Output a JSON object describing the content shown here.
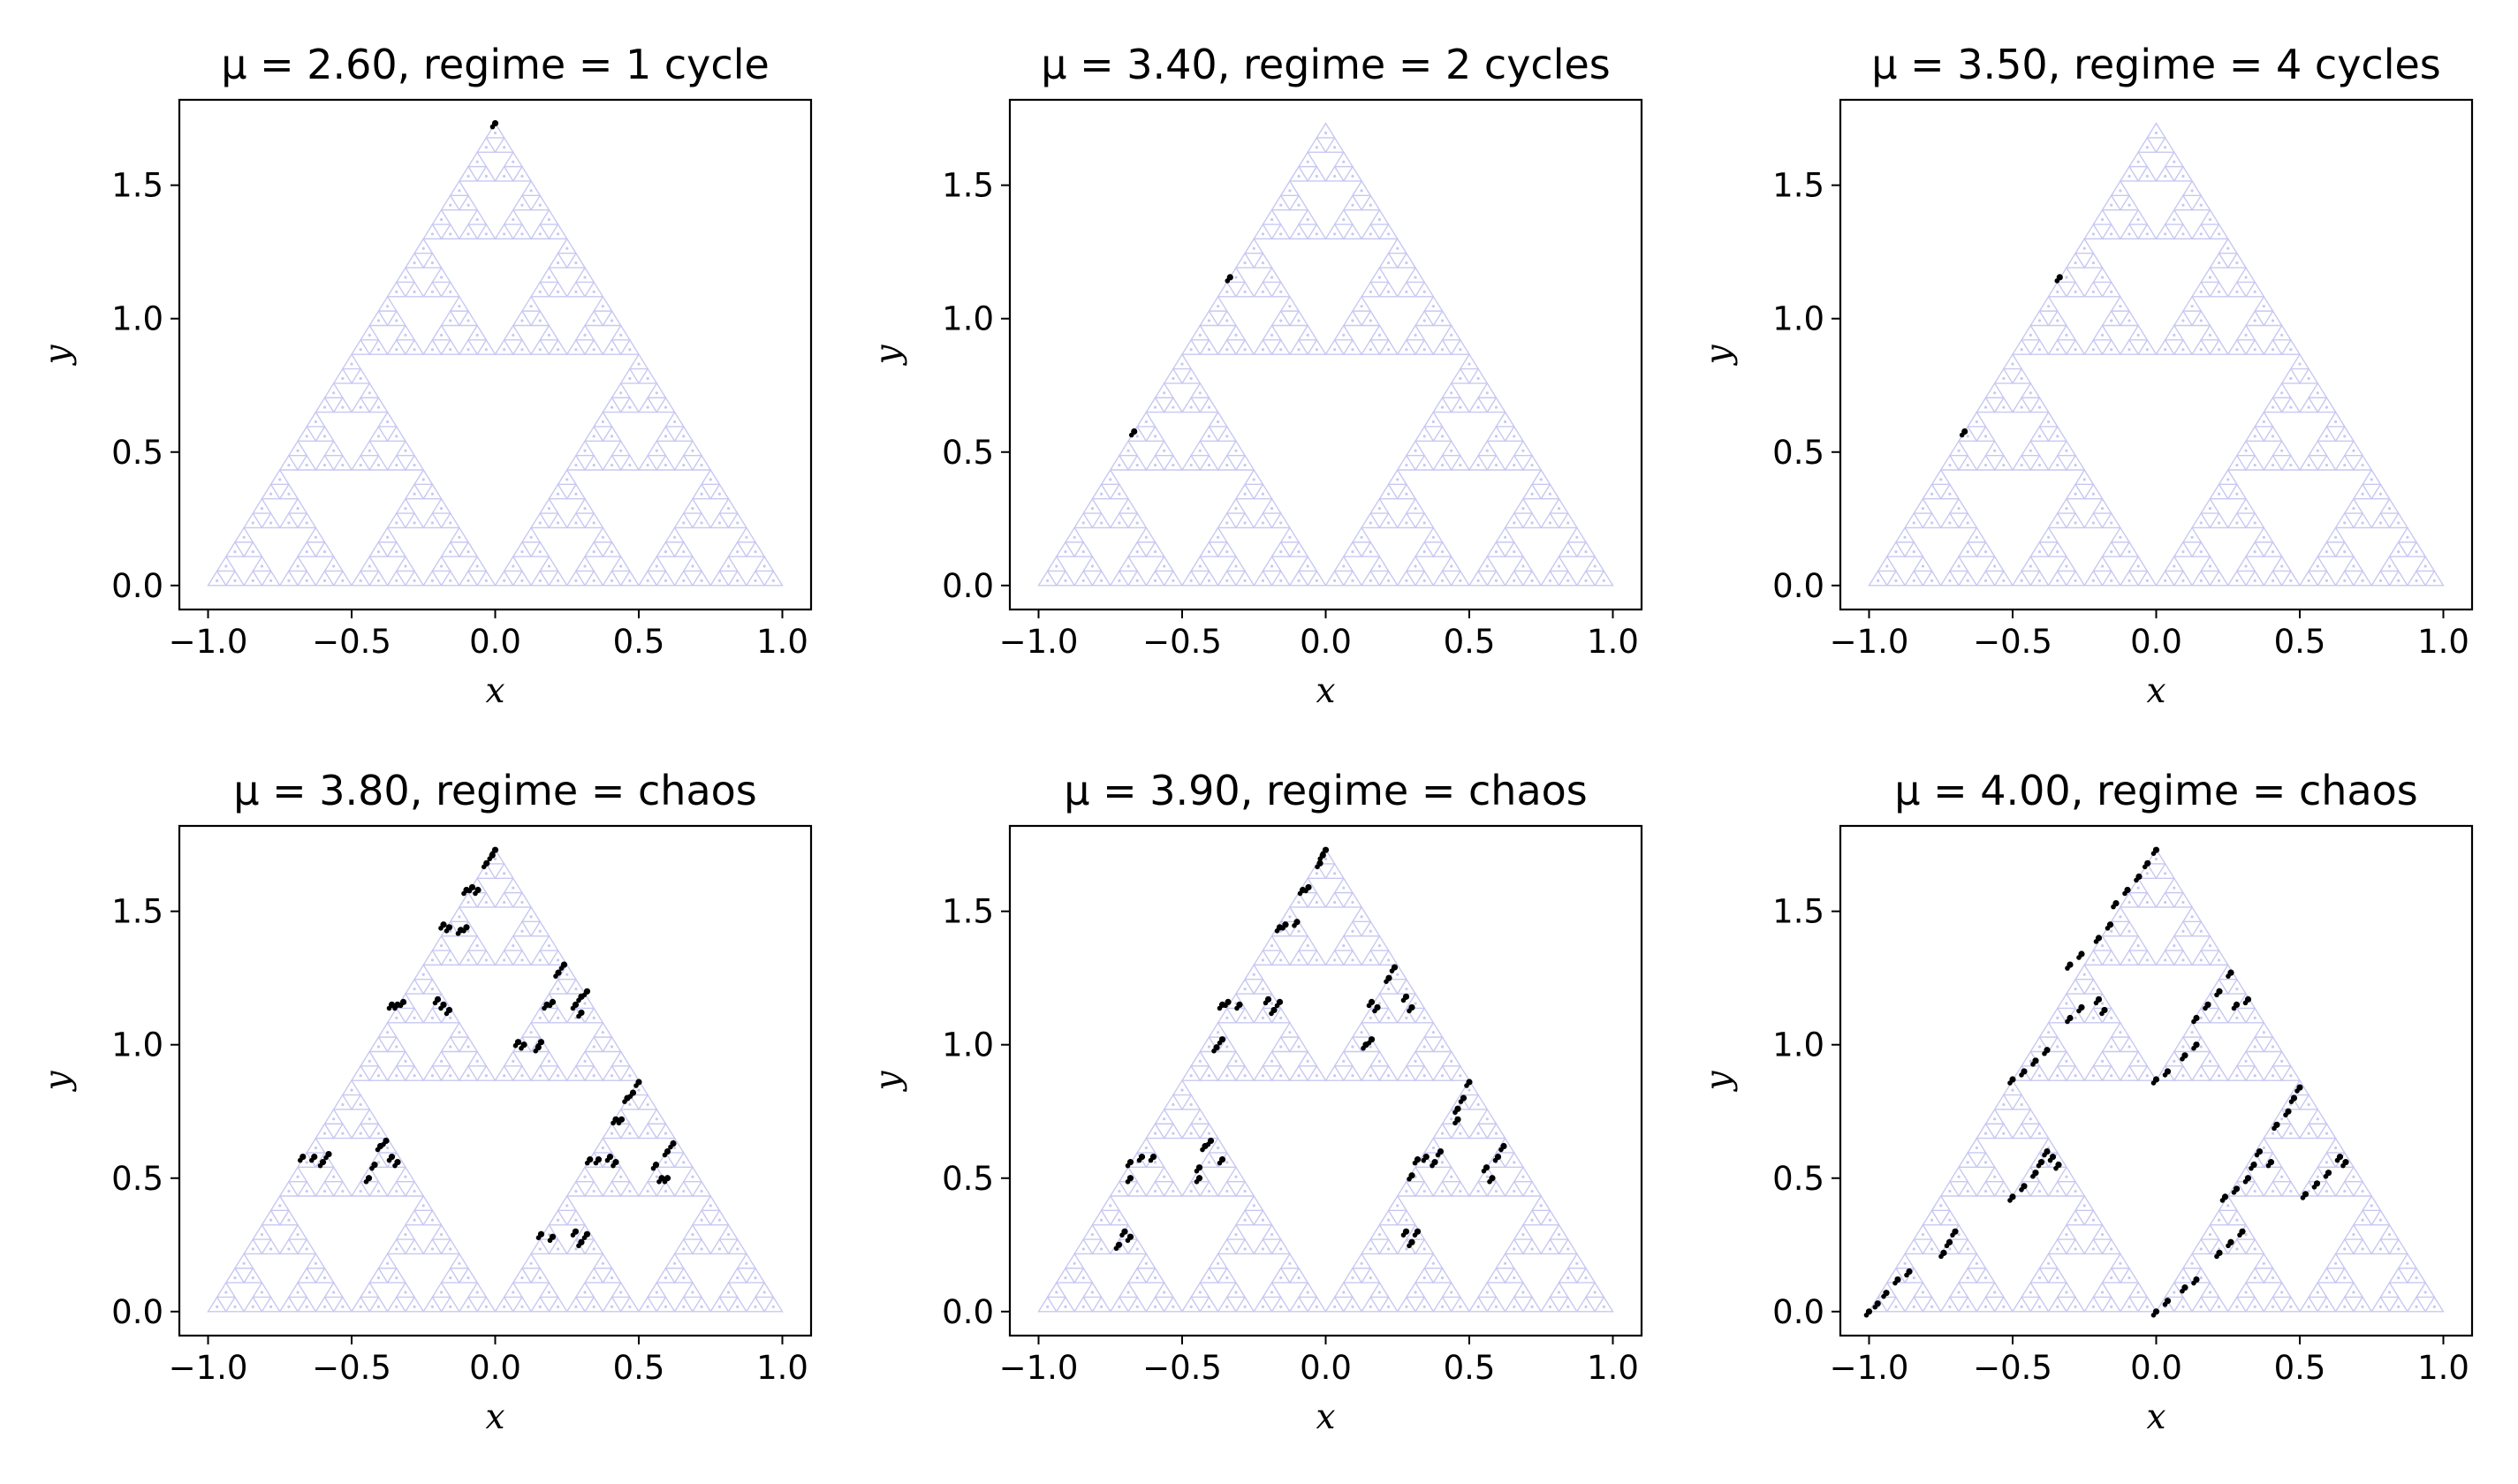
{
  "chart_data": [
    {
      "type": "scatter",
      "title": "μ = 2.60, regime = 1 cycle",
      "xlabel": "x",
      "ylabel": "y",
      "xlim": [
        -1.1,
        1.1
      ],
      "ylim": [
        -0.09,
        1.82
      ],
      "xticks": [
        "−1.0",
        "−0.5",
        "0.0",
        "0.5",
        "1.0"
      ],
      "yticks": [
        "0.0",
        "0.5",
        "1.0",
        "1.5"
      ],
      "background_color": "#c8c8f2",
      "point_color": "#000000",
      "points": [
        [
          0.0,
          1.732
        ]
      ]
    },
    {
      "type": "scatter",
      "title": "μ = 3.40, regime = 2 cycles",
      "xlabel": "x",
      "ylabel": "y",
      "xlim": [
        -1.1,
        1.1
      ],
      "ylim": [
        -0.09,
        1.82
      ],
      "xticks": [
        "−1.0",
        "−0.5",
        "0.0",
        "0.5",
        "1.0"
      ],
      "yticks": [
        "0.0",
        "0.5",
        "1.0",
        "1.5"
      ],
      "background_color": "#c8c8f2",
      "point_color": "#000000",
      "points": [
        [
          -0.333,
          1.155
        ],
        [
          -0.667,
          0.577
        ]
      ]
    },
    {
      "type": "scatter",
      "title": "μ = 3.50, regime = 4 cycles",
      "xlabel": "x",
      "ylabel": "y",
      "xlim": [
        -1.1,
        1.1
      ],
      "ylim": [
        -0.09,
        1.82
      ],
      "xticks": [
        "−1.0",
        "−0.5",
        "0.0",
        "0.5",
        "1.0"
      ],
      "yticks": [
        "0.0",
        "0.5",
        "1.0",
        "1.5"
      ],
      "background_color": "#c8c8f2",
      "point_color": "#000000",
      "points": [
        [
          -0.336,
          1.155
        ],
        [
          -0.667,
          0.577
        ]
      ]
    },
    {
      "type": "scatter",
      "title": "μ = 3.80, regime = chaos",
      "xlabel": "x",
      "ylabel": "y",
      "xlim": [
        -1.1,
        1.1
      ],
      "ylim": [
        -0.09,
        1.82
      ],
      "xticks": [
        "−1.0",
        "−0.5",
        "0.0",
        "0.5",
        "1.0"
      ],
      "yticks": [
        "0.0",
        "0.5",
        "1.0",
        "1.5"
      ],
      "background_color": "#c8c8f2",
      "point_color": "#000000",
      "points": [
        [
          -0.01,
          1.71
        ],
        [
          0.0,
          1.73
        ],
        [
          -0.03,
          1.68
        ],
        [
          -0.06,
          1.58
        ],
        [
          -0.08,
          1.59
        ],
        [
          -0.1,
          1.58
        ],
        [
          -0.16,
          1.44
        ],
        [
          -0.18,
          1.45
        ],
        [
          -0.1,
          1.44
        ],
        [
          -0.12,
          1.43
        ],
        [
          -0.34,
          1.15
        ],
        [
          -0.32,
          1.16
        ],
        [
          -0.36,
          1.15
        ],
        [
          -0.2,
          1.17
        ],
        [
          -0.18,
          1.15
        ],
        [
          -0.16,
          1.13
        ],
        [
          0.22,
          1.27
        ],
        [
          0.24,
          1.3
        ],
        [
          0.18,
          1.15
        ],
        [
          0.2,
          1.16
        ],
        [
          0.28,
          1.15
        ],
        [
          0.3,
          1.18
        ],
        [
          0.32,
          1.2
        ],
        [
          0.3,
          1.12
        ],
        [
          0.08,
          1.01
        ],
        [
          0.1,
          1.0
        ],
        [
          0.15,
          0.99
        ],
        [
          0.16,
          1.01
        ],
        [
          0.5,
          0.86
        ],
        [
          0.48,
          0.82
        ],
        [
          0.46,
          0.8
        ],
        [
          0.42,
          0.72
        ],
        [
          0.44,
          0.72
        ],
        [
          0.33,
          0.57
        ],
        [
          0.36,
          0.57
        ],
        [
          0.4,
          0.58
        ],
        [
          0.42,
          0.56
        ],
        [
          0.6,
          0.6
        ],
        [
          0.62,
          0.63
        ],
        [
          0.58,
          0.5
        ],
        [
          0.6,
          0.5
        ],
        [
          0.56,
          0.55
        ],
        [
          -0.67,
          0.58
        ],
        [
          -0.63,
          0.58
        ],
        [
          -0.6,
          0.56
        ],
        [
          -0.58,
          0.59
        ],
        [
          -0.4,
          0.62
        ],
        [
          -0.38,
          0.64
        ],
        [
          -0.42,
          0.55
        ],
        [
          -0.44,
          0.5
        ],
        [
          -0.36,
          0.58
        ],
        [
          -0.34,
          0.56
        ],
        [
          0.16,
          0.29
        ],
        [
          0.2,
          0.28
        ],
        [
          0.28,
          0.3
        ],
        [
          0.3,
          0.26
        ],
        [
          0.32,
          0.29
        ]
      ]
    },
    {
      "type": "scatter",
      "title": "μ = 3.90, regime = chaos",
      "xlabel": "x",
      "ylabel": "y",
      "xlim": [
        -1.1,
        1.1
      ],
      "ylim": [
        -0.09,
        1.82
      ],
      "xticks": [
        "−1.0",
        "−0.5",
        "0.0",
        "0.5",
        "1.0"
      ],
      "yticks": [
        "0.0",
        "0.5",
        "1.0",
        "1.5"
      ],
      "background_color": "#c8c8f2",
      "point_color": "#000000",
      "points": [
        [
          -0.01,
          1.71
        ],
        [
          0.0,
          1.73
        ],
        [
          -0.02,
          1.68
        ],
        [
          -0.06,
          1.59
        ],
        [
          -0.08,
          1.58
        ],
        [
          -0.16,
          1.44
        ],
        [
          -0.14,
          1.45
        ],
        [
          -0.1,
          1.46
        ],
        [
          -0.36,
          1.15
        ],
        [
          -0.34,
          1.16
        ],
        [
          -0.3,
          1.15
        ],
        [
          -0.36,
          1.02
        ],
        [
          -0.38,
          0.99
        ],
        [
          -0.2,
          1.17
        ],
        [
          -0.16,
          1.16
        ],
        [
          -0.18,
          1.13
        ],
        [
          0.22,
          1.25
        ],
        [
          0.24,
          1.29
        ],
        [
          0.16,
          1.16
        ],
        [
          0.18,
          1.14
        ],
        [
          0.28,
          1.18
        ],
        [
          0.3,
          1.14
        ],
        [
          0.14,
          1.0
        ],
        [
          0.16,
          1.02
        ],
        [
          0.5,
          0.86
        ],
        [
          0.48,
          0.8
        ],
        [
          0.46,
          0.76
        ],
        [
          0.46,
          0.72
        ],
        [
          0.32,
          0.57
        ],
        [
          0.35,
          0.58
        ],
        [
          0.4,
          0.6
        ],
        [
          0.3,
          0.51
        ],
        [
          0.38,
          0.56
        ],
        [
          0.62,
          0.62
        ],
        [
          0.6,
          0.58
        ],
        [
          0.58,
          0.5
        ],
        [
          0.56,
          0.54
        ],
        [
          -0.68,
          0.56
        ],
        [
          -0.64,
          0.58
        ],
        [
          -0.6,
          0.58
        ],
        [
          -0.68,
          0.5
        ],
        [
          -0.42,
          0.62
        ],
        [
          -0.4,
          0.64
        ],
        [
          -0.44,
          0.54
        ],
        [
          -0.44,
          0.5
        ],
        [
          -0.36,
          0.57
        ],
        [
          -0.7,
          0.3
        ],
        [
          -0.72,
          0.25
        ],
        [
          -0.68,
          0.28
        ],
        [
          0.28,
          0.3
        ],
        [
          0.3,
          0.26
        ],
        [
          0.32,
          0.3
        ]
      ]
    },
    {
      "type": "scatter",
      "title": "μ = 4.00, regime = chaos",
      "xlabel": "x",
      "ylabel": "y",
      "xlim": [
        -1.1,
        1.1
      ],
      "ylim": [
        -0.09,
        1.82
      ],
      "xticks": [
        "−1.0",
        "−0.5",
        "0.0",
        "0.5",
        "1.0"
      ],
      "yticks": [
        "0.0",
        "0.5",
        "1.0",
        "1.5"
      ],
      "background_color": "#c8c8f2",
      "point_color": "#000000",
      "points": [
        [
          -1.0,
          0.0
        ],
        [
          -0.97,
          0.03
        ],
        [
          -0.94,
          0.07
        ],
        [
          -0.9,
          0.12
        ],
        [
          -0.86,
          0.15
        ],
        [
          -0.74,
          0.22
        ],
        [
          -0.72,
          0.26
        ],
        [
          -0.7,
          0.3
        ],
        [
          -0.5,
          0.43
        ],
        [
          -0.46,
          0.47
        ],
        [
          -0.42,
          0.52
        ],
        [
          -0.4,
          0.56
        ],
        [
          -0.38,
          0.6
        ],
        [
          -0.36,
          0.58
        ],
        [
          -0.34,
          0.55
        ],
        [
          -0.5,
          0.87
        ],
        [
          -0.46,
          0.9
        ],
        [
          -0.42,
          0.94
        ],
        [
          -0.38,
          0.98
        ],
        [
          -0.3,
          1.1
        ],
        [
          -0.26,
          1.14
        ],
        [
          -0.2,
          1.17
        ],
        [
          -0.18,
          1.13
        ],
        [
          -0.3,
          1.3
        ],
        [
          -0.26,
          1.34
        ],
        [
          -0.2,
          1.4
        ],
        [
          -0.16,
          1.45
        ],
        [
          -0.14,
          1.53
        ],
        [
          -0.1,
          1.58
        ],
        [
          -0.06,
          1.63
        ],
        [
          -0.03,
          1.68
        ],
        [
          0.0,
          1.73
        ],
        [
          0.0,
          0.87
        ],
        [
          0.04,
          0.9
        ],
        [
          0.1,
          0.96
        ],
        [
          0.14,
          1.0
        ],
        [
          0.14,
          1.1
        ],
        [
          0.18,
          1.15
        ],
        [
          0.22,
          1.2
        ],
        [
          0.26,
          1.27
        ],
        [
          0.28,
          1.15
        ],
        [
          0.32,
          1.17
        ],
        [
          0.48,
          0.8
        ],
        [
          0.5,
          0.84
        ],
        [
          0.46,
          0.75
        ],
        [
          0.42,
          0.7
        ],
        [
          0.36,
          0.6
        ],
        [
          0.4,
          0.56
        ],
        [
          0.34,
          0.55
        ],
        [
          0.24,
          0.43
        ],
        [
          0.28,
          0.46
        ],
        [
          0.32,
          0.5
        ],
        [
          0.52,
          0.44
        ],
        [
          0.56,
          0.48
        ],
        [
          0.6,
          0.52
        ],
        [
          0.64,
          0.58
        ],
        [
          0.66,
          0.56
        ],
        [
          0.0,
          0.0
        ],
        [
          0.04,
          0.04
        ],
        [
          0.1,
          0.09
        ],
        [
          0.14,
          0.12
        ],
        [
          0.22,
          0.22
        ],
        [
          0.26,
          0.26
        ],
        [
          0.3,
          0.3
        ]
      ]
    }
  ]
}
